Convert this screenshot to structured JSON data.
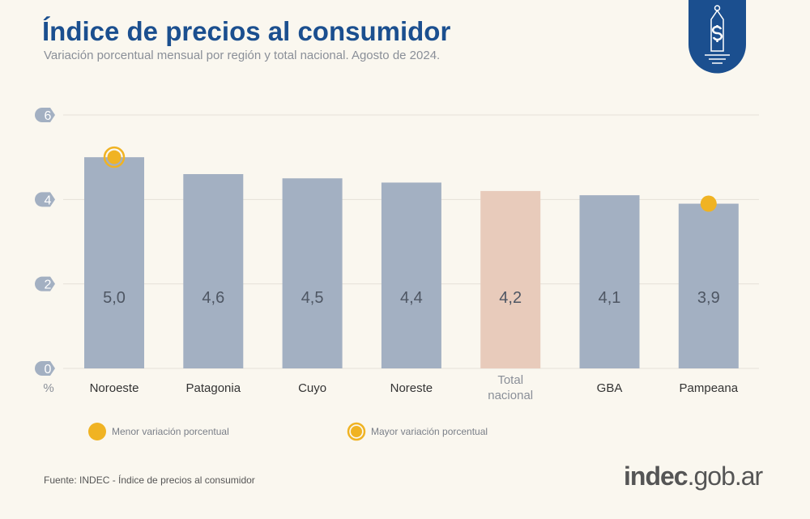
{
  "header": {
    "title": "Índice de precios al consumidor",
    "subtitle": "Variación porcentual mensual por región y total nacional. Agosto de 2024."
  },
  "logo_icon": "price-tag-dollar-icon",
  "chart_data": {
    "type": "bar",
    "categories": [
      "Noroeste",
      "Patagonia",
      "Cuyo",
      "Noreste",
      "Total nacional",
      "GBA",
      "Pampeana"
    ],
    "values": [
      5.0,
      4.6,
      4.5,
      4.4,
      4.2,
      4.1,
      3.9
    ],
    "value_labels": [
      "5,0",
      "4,6",
      "4,5",
      "4,4",
      "4,2",
      "4,1",
      "3,9"
    ],
    "ylim": [
      0,
      6
    ],
    "yticks": [
      "0",
      "2",
      "4",
      "6"
    ],
    "ylabel": "%",
    "grid": true,
    "colors": {
      "bar": "#a3b0c2",
      "highlight": "#e8cbbb",
      "marker": "#f0b323"
    },
    "highlight_index": 4,
    "max_index": 0,
    "min_index": 6,
    "legend": [
      {
        "label": "Menor variación porcentual",
        "marker": "dot"
      },
      {
        "label": "Mayor variación porcentual",
        "marker": "ring"
      }
    ]
  },
  "footer": {
    "source": "Fuente: INDEC - Índice de precios al consumidor",
    "brand_bold": "indec",
    "brand_rest": ".gob.ar"
  }
}
